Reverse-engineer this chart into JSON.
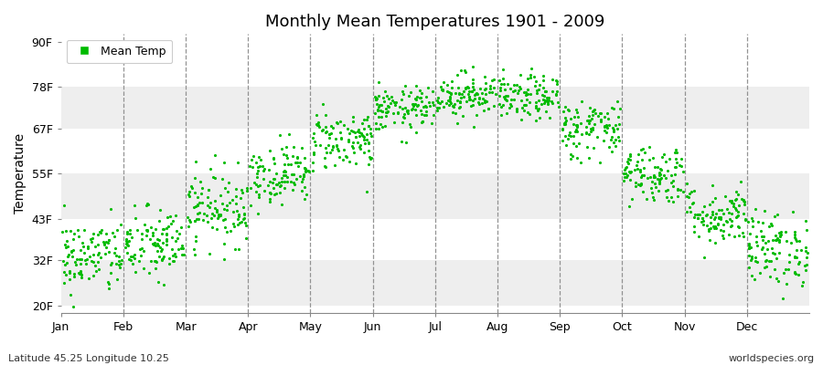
{
  "title": "Monthly Mean Temperatures 1901 - 2009",
  "ylabel": "Temperature",
  "yticks": [
    20,
    32,
    43,
    55,
    67,
    78,
    90
  ],
  "ytick_labels": [
    "20F",
    "32F",
    "43F",
    "55F",
    "67F",
    "78F",
    "90F"
  ],
  "ylim": [
    18,
    92
  ],
  "months": [
    "Jan",
    "Feb",
    "Mar",
    "Apr",
    "May",
    "Jun",
    "Jul",
    "Aug",
    "Sep",
    "Oct",
    "Nov",
    "Dec"
  ],
  "dot_color": "#00BB00",
  "dot_size": 5,
  "background_color": "#FFFFFF",
  "band_color_light": "#FFFFFF",
  "band_color_dark": "#EEEEEE",
  "legend_label": "Mean Temp",
  "footer_left": "Latitude 45.25 Longitude 10.25",
  "footer_right": "worldspecies.org",
  "monthly_mean_F": [
    33,
    36,
    46,
    55,
    64,
    72,
    76,
    75,
    67,
    55,
    44,
    35
  ],
  "monthly_std_F": [
    5,
    5,
    5,
    4,
    4,
    3,
    3,
    3,
    4,
    4,
    4,
    5
  ],
  "n_years": 109,
  "seed": 42,
  "xlim_min": 0,
  "xlim_max": 12
}
